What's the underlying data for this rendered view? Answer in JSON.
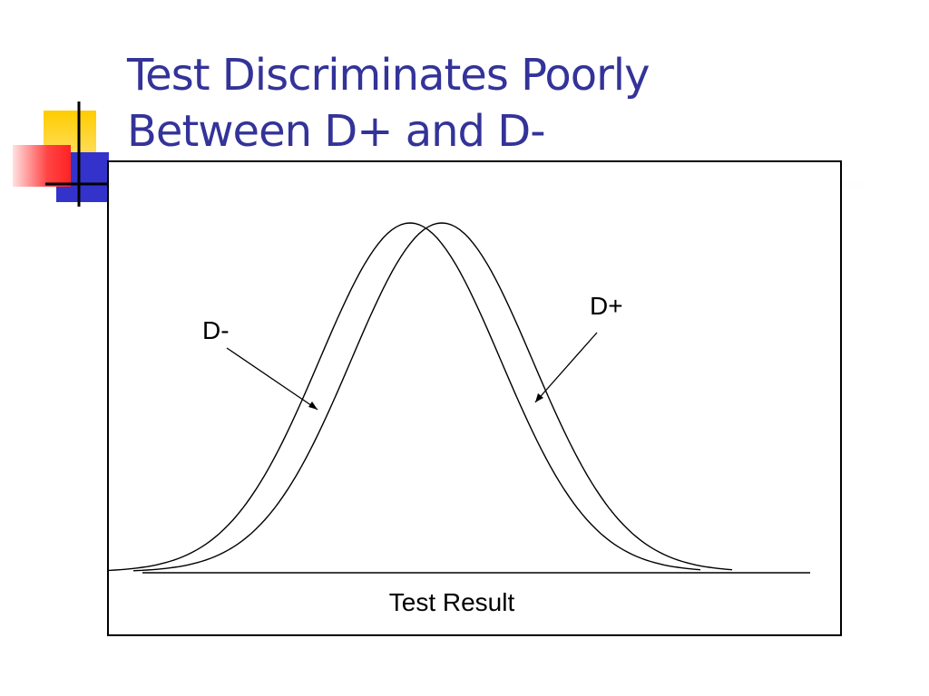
{
  "slide": {
    "title_line1": "Test Discriminates Poorly",
    "title_line2": "Between D+ and D-"
  },
  "figure": {
    "x_axis_label": "Test Result",
    "curves": [
      {
        "label": "D-",
        "mean": 0.0,
        "sd": 1.0
      },
      {
        "label": "D+",
        "mean": 0.35,
        "sd": 1.0
      }
    ]
  },
  "decoration": {
    "yellow": "#ffcc00",
    "red": "#ff3333",
    "blue": "#3333cc",
    "title_color": "#333399"
  }
}
